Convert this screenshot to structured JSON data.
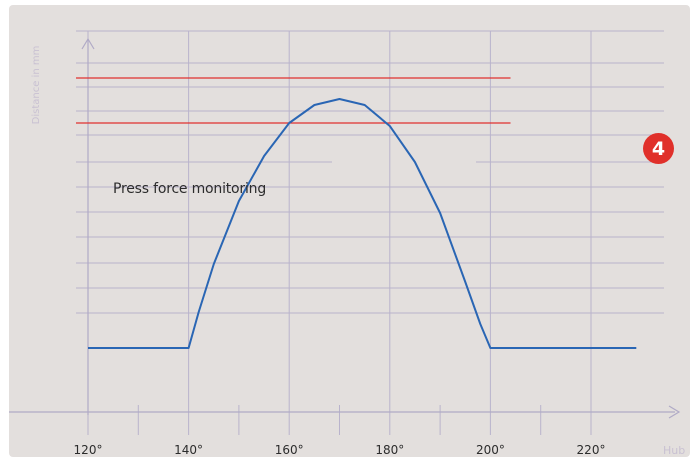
{
  "chart_data": {
    "type": "line",
    "title": "",
    "xlabel": "Hub",
    "ylabel": "Distance in mm",
    "xlim": [
      118,
      232
    ],
    "ylim": [
      0,
      1
    ],
    "grid": true,
    "x_ticks": [
      {
        "value": 120,
        "label": "120°"
      },
      {
        "value": 140,
        "label": "140°"
      },
      {
        "value": 160,
        "label": "160°"
      },
      {
        "value": 180,
        "label": "180°"
      },
      {
        "value": 200,
        "label": "200°"
      },
      {
        "value": 220,
        "label": "220°"
      }
    ],
    "series": [
      {
        "color": "#2a66b4",
        "x": [
          120,
          130,
          139,
          140,
          142,
          145,
          150,
          155,
          160,
          165,
          170,
          175,
          180,
          185,
          190,
          195,
          198,
          200,
          201,
          210,
          220,
          229
        ],
        "y": [
          0.05,
          0.05,
          0.05,
          0.05,
          0.17,
          0.33,
          0.54,
          0.69,
          0.8,
          0.86,
          0.88,
          0.86,
          0.79,
          0.67,
          0.5,
          0.27,
          0.13,
          0.05,
          0.05,
          0.05,
          0.05,
          0.05
        ]
      }
    ],
    "threshold_lines": [
      {
        "y": 0.95,
        "x_end": 204,
        "color": "#e03030"
      },
      {
        "y": 0.8,
        "x_end": 204,
        "color": "#e03030"
      }
    ],
    "annotation": "Press force monitoring",
    "badge": "4",
    "colors": {
      "background": "#e3dfdd",
      "grid": "#b9b3cc",
      "axis": "#b0aac6",
      "tick_label": "#2c2c2c",
      "axis_label": "#c9c1d2",
      "badge": "#e0302a"
    }
  }
}
